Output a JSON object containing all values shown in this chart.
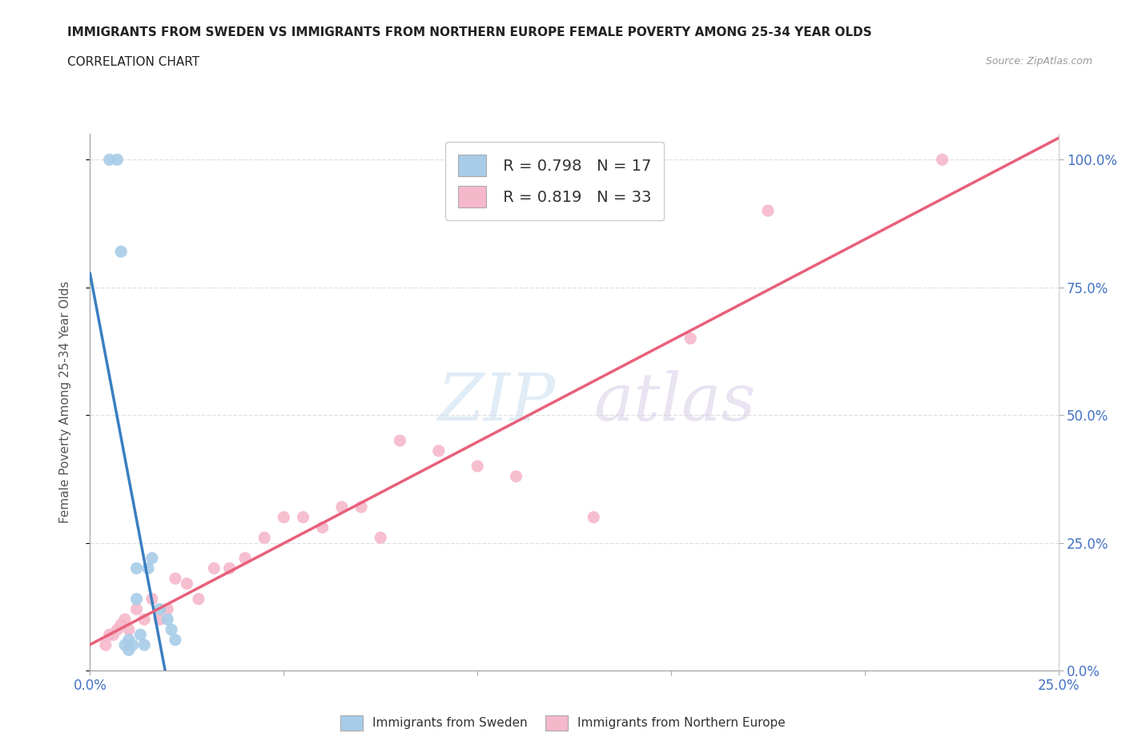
{
  "title": "IMMIGRANTS FROM SWEDEN VS IMMIGRANTS FROM NORTHERN EUROPE FEMALE POVERTY AMONG 25-34 YEAR OLDS",
  "subtitle": "CORRELATION CHART",
  "source": "Source: ZipAtlas.com",
  "ylabel": "Female Poverty Among 25-34 Year Olds",
  "xlim": [
    0,
    0.25
  ],
  "ylim": [
    0,
    1.05
  ],
  "yticks": [
    0.0,
    0.25,
    0.5,
    0.75,
    1.0
  ],
  "ytick_labels": [
    "0.0%",
    "25.0%",
    "50.0%",
    "75.0%",
    "100.0%"
  ],
  "xtick_labels": [
    "0.0%",
    "",
    "",
    "",
    "",
    "25.0%"
  ],
  "sweden_color": "#a8cce8",
  "sweden_line_color": "#3a7fc1",
  "northern_color": "#f5b8cb",
  "northern_line_color": "#e8607a",
  "sweden_R": 0.798,
  "sweden_N": 17,
  "northern_R": 0.819,
  "northern_N": 33,
  "sweden_scatter_x": [
    0.005,
    0.007,
    0.008,
    0.009,
    0.01,
    0.01,
    0.011,
    0.012,
    0.012,
    0.013,
    0.014,
    0.015,
    0.016,
    0.018,
    0.02,
    0.021,
    0.022
  ],
  "sweden_scatter_y": [
    1.0,
    1.0,
    0.82,
    0.05,
    0.06,
    0.04,
    0.05,
    0.2,
    0.14,
    0.07,
    0.05,
    0.2,
    0.22,
    0.12,
    0.1,
    0.08,
    0.06
  ],
  "northern_scatter_x": [
    0.004,
    0.005,
    0.006,
    0.007,
    0.008,
    0.009,
    0.01,
    0.012,
    0.014,
    0.016,
    0.018,
    0.02,
    0.022,
    0.025,
    0.028,
    0.032,
    0.036,
    0.04,
    0.045,
    0.05,
    0.055,
    0.06,
    0.065,
    0.07,
    0.075,
    0.08,
    0.09,
    0.1,
    0.11,
    0.13,
    0.155,
    0.175,
    0.22
  ],
  "northern_scatter_y": [
    0.05,
    0.07,
    0.07,
    0.08,
    0.09,
    0.1,
    0.08,
    0.12,
    0.1,
    0.14,
    0.1,
    0.12,
    0.18,
    0.17,
    0.14,
    0.2,
    0.2,
    0.22,
    0.26,
    0.3,
    0.3,
    0.28,
    0.32,
    0.32,
    0.26,
    0.45,
    0.43,
    0.4,
    0.38,
    0.3,
    0.65,
    0.9,
    1.0
  ],
  "background_color": "#ffffff",
  "grid_color": "#dddddd",
  "tick_color": "#4472c4",
  "label_color": "#555555"
}
